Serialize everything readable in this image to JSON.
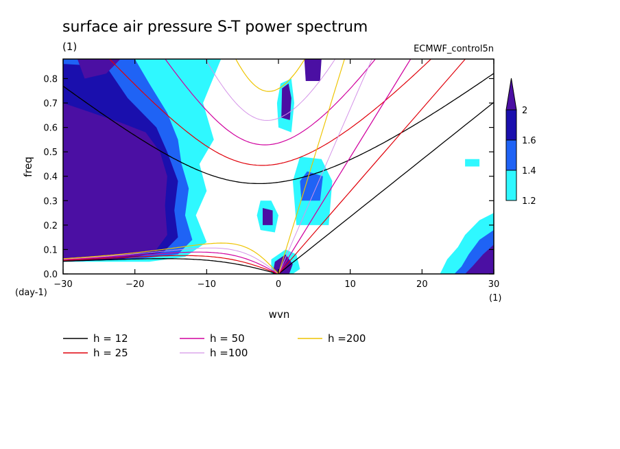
{
  "chart_data": {
    "type": "heatmap",
    "title": "surface air pressure S-T power spectrum",
    "units_left": "(1)",
    "model_label": "ECMWF_control5n",
    "xlabel": "wvn",
    "ylabel": "freq",
    "x_unit": "(1)",
    "y_unit": "(day-1)",
    "xlim": [
      -30,
      30
    ],
    "ylim": [
      0,
      0.88
    ],
    "x_ticks": [
      -30,
      -20,
      -10,
      0,
      10,
      20,
      30
    ],
    "x_tick_labels": [
      "−30",
      "−20",
      "−10",
      "0",
      "10",
      "20",
      "30"
    ],
    "y_ticks": [
      0.0,
      0.1,
      0.2,
      0.3,
      0.4,
      0.5,
      0.6,
      0.7,
      0.8
    ],
    "y_tick_labels": [
      "0.0",
      "0.1",
      "0.2",
      "0.3",
      "0.4",
      "0.5",
      "0.6",
      "0.7",
      "0.8"
    ],
    "colorbar": {
      "levels": [
        1.2,
        1.4,
        1.6,
        2
      ],
      "labels": [
        "1.2",
        "1.4",
        "1.6",
        "2"
      ],
      "colors": [
        "#2ff8ff",
        "#1f63f5",
        "#1a0fad",
        "#4b0fa3"
      ]
    },
    "dispersion_curves": [
      {
        "label": "h = 12",
        "h": 12,
        "color": "#000000",
        "width": 1.3
      },
      {
        "label": "h = 25",
        "h": 25,
        "color": "#e0000a",
        "width": 1.2
      },
      {
        "label": "h = 50",
        "h": 50,
        "color": "#d0009e",
        "width": 1.2
      },
      {
        "label": "h =100",
        "h": 100,
        "color": "#d493e8",
        "width": 1.0
      },
      {
        "label": "h =200",
        "h": 200,
        "color": "#eec400",
        "width": 1.2
      }
    ],
    "shaded_regions": [
      {
        "name": "westward low-wavenumber region",
        "x_range": [
          -30,
          -12
        ],
        "y_range": [
          0.05,
          0.88
        ],
        "level": 2
      },
      {
        "name": "westward outer band",
        "x_range": [
          -24,
          -11
        ],
        "y_range": [
          0.3,
          0.88
        ],
        "level": 1.4
      },
      {
        "name": "eastward high-wavenumber low-frequency region",
        "x_range": [
          22,
          30
        ],
        "y_range": [
          0.0,
          0.25
        ],
        "level": 1.6
      },
      {
        "name": "small-wavenumber eastward streaks",
        "x_range": [
          0,
          7
        ],
        "y_range": [
          0.0,
          0.88
        ],
        "level": 1.2
      }
    ]
  }
}
